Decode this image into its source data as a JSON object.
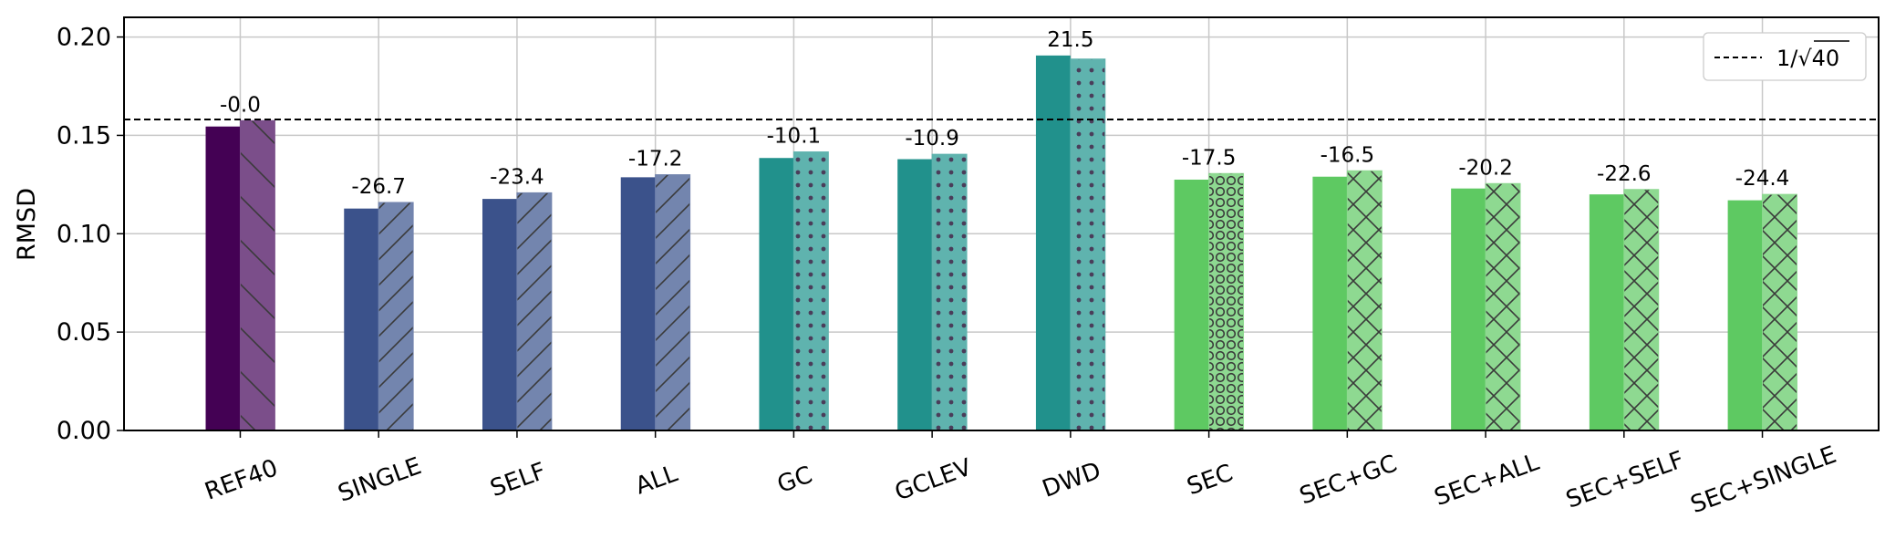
{
  "chart_data": {
    "type": "bar",
    "title": "",
    "xlabel": "",
    "ylabel": "RMSD",
    "ylim": [
      0,
      0.21
    ],
    "yticks": [
      "0.00",
      "0.05",
      "0.10",
      "0.15",
      "0.20"
    ],
    "ytick_values": [
      0,
      0.05,
      0.1,
      0.15,
      0.2
    ],
    "grid": true,
    "categories": [
      "REF40",
      "SINGLE",
      "SELF",
      "ALL",
      "GC",
      "GCLEV",
      "DWD",
      "SEC",
      "SEC+GC",
      "SEC+ALL",
      "SEC+SELF",
      "SEC+SINGLE"
    ],
    "series": [
      {
        "name": "solid",
        "values": [
          0.1545,
          0.1128,
          0.1177,
          0.1287,
          0.1385,
          0.1379,
          0.1906,
          0.1275,
          0.129,
          0.123,
          0.12,
          0.117
        ]
      },
      {
        "name": "hatched",
        "values": [
          0.1575,
          0.1159,
          0.1208,
          0.13,
          0.1416,
          0.1404,
          0.1888,
          0.1306,
          0.132,
          0.1255,
          0.1225,
          0.12
        ]
      }
    ],
    "annotations": [
      "-0.0",
      "-26.7",
      "-23.4",
      "-17.2",
      "-10.1",
      "-10.9",
      "21.5",
      "-17.5",
      "-16.5",
      "-20.2",
      "-22.6",
      "-24.4"
    ],
    "colors_solid": [
      "#440154",
      "#3b528b",
      "#3b528b",
      "#3b528b",
      "#21918c",
      "#21918c",
      "#21918c",
      "#5ec962",
      "#5ec962",
      "#5ec962",
      "#5ec962",
      "#5ec962"
    ],
    "colors_hatched": [
      "#7b4e8a",
      "#7385ae",
      "#7385ae",
      "#7385ae",
      "#5fb3ae",
      "#5fb3ae",
      "#5fb3ae",
      "#8ed991",
      "#8ed991",
      "#8ed991",
      "#8ed991",
      "#8ed991"
    ],
    "hatches": [
      "backslash",
      "slash",
      "slash",
      "slash",
      "dots",
      "dots",
      "dots",
      "circles",
      "cross",
      "cross",
      "cross",
      "cross"
    ],
    "reference_line": {
      "value": 0.1581,
      "label_prefix": "1/",
      "label_radicand": "40",
      "style": "dashed"
    },
    "legend_position": "top-right"
  }
}
